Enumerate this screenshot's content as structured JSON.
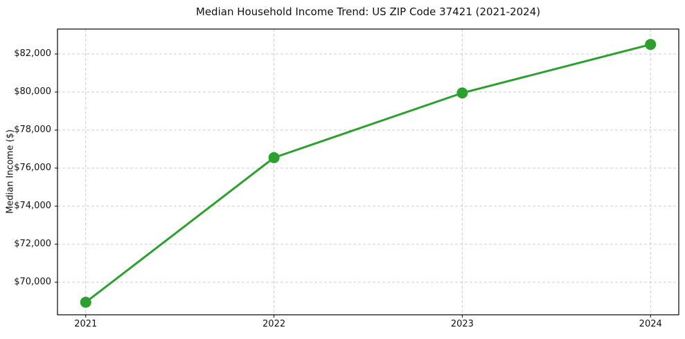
{
  "chart_data": {
    "type": "line",
    "title": "Median Household Income Trend: US ZIP Code 37421 (2021-2024)",
    "xlabel": "",
    "ylabel": "Median Income ($)",
    "x": [
      2021,
      2022,
      2023,
      2024
    ],
    "y": [
      68950,
      76550,
      79950,
      82500
    ],
    "xtick_labels": [
      "2021",
      "2022",
      "2023",
      "2024"
    ],
    "yticks": [
      70000,
      72000,
      74000,
      76000,
      78000,
      80000,
      82000
    ],
    "ytick_labels": [
      "$70,000",
      "$72,000",
      "$74,000",
      "$76,000",
      "$78,000",
      "$80,000",
      "$82,000"
    ],
    "xlim": [
      2020.85,
      2024.15
    ],
    "ylim": [
      68290,
      83310
    ],
    "line_color": "#2ca02c",
    "marker": "circle",
    "marker_radius": 8,
    "line_width": 3,
    "grid": true,
    "grid_style": "dashed",
    "grid_color": "#cccccc",
    "spine_color": "#000000",
    "text_color": "#111111",
    "background_color": "#ffffff",
    "legend": "none"
  }
}
